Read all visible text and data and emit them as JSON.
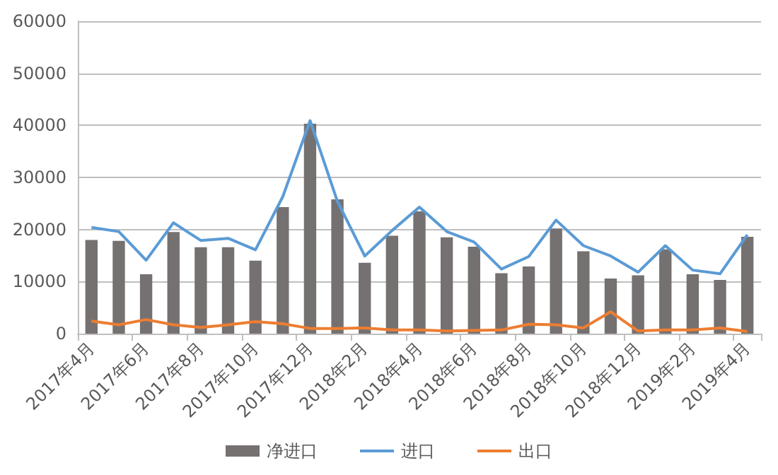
{
  "chart_data": {
    "type": "bar",
    "categories": [
      "2017年4月",
      null,
      "2017年6月",
      null,
      "2017年8月",
      null,
      "2017年10月",
      null,
      "2017年12月",
      null,
      "2018年2月",
      null,
      "2018年4月",
      null,
      "2018年6月",
      null,
      "2018年8月",
      null,
      "2018年10月",
      null,
      "2018年12月",
      null,
      "2019年2月",
      null,
      "2019年4月"
    ],
    "series": [
      {
        "name": "净进口",
        "color": "#767171",
        "values": [
          18000,
          17800,
          11400,
          19500,
          16600,
          16600,
          14000,
          24300,
          40300,
          25800,
          13600,
          18800,
          23500,
          18500,
          16700,
          11600,
          12900,
          20200,
          15800,
          10600,
          11200,
          16200,
          11400,
          10300,
          18600
        ]
      },
      {
        "name": "进口",
        "type": "line",
        "color": "#5b9bd5",
        "values": [
          20400,
          19600,
          14100,
          21300,
          17900,
          18300,
          16100,
          26300,
          40900,
          25400,
          14900,
          19800,
          24300,
          19600,
          17600,
          12400,
          14800,
          21800,
          16900,
          14900,
          11800,
          16900,
          12200,
          11500,
          19000
        ]
      },
      {
        "name": "出口",
        "type": "line",
        "color": "#ed7d31",
        "values": [
          2400,
          1700,
          2700,
          1700,
          1200,
          1700,
          2300,
          1900,
          1000,
          1000,
          1100,
          700,
          700,
          500,
          600,
          700,
          1800,
          1700,
          1100,
          4200,
          500,
          700,
          700,
          1100,
          400
        ]
      }
    ],
    "ylim": [
      0,
      60000
    ],
    "yticks": [
      0,
      10000,
      20000,
      30000,
      40000,
      50000,
      60000
    ],
    "grid": "y",
    "legend": "bottom",
    "marker": "none"
  }
}
